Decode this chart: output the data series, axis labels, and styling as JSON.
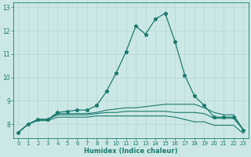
{
  "title": "",
  "xlabel": "Humidex (Indice chaleur)",
  "ylabel": "",
  "bg_color": "#cce8e6",
  "grid_color": "#b8d8d6",
  "line_color": "#1a7a6e",
  "xlim": [
    -0.5,
    23.5
  ],
  "ylim": [
    7.4,
    13.2
  ],
  "yticks": [
    8,
    9,
    10,
    11,
    12,
    13
  ],
  "xticks": [
    0,
    1,
    2,
    3,
    4,
    5,
    6,
    7,
    8,
    9,
    10,
    11,
    12,
    13,
    14,
    15,
    16,
    17,
    18,
    19,
    20,
    21,
    22,
    23
  ],
  "series": [
    [
      7.65,
      8.0,
      8.2,
      8.2,
      8.5,
      8.55,
      8.6,
      8.6,
      8.8,
      9.4,
      10.2,
      11.1,
      12.2,
      11.85,
      12.5,
      12.75,
      11.55,
      10.1,
      9.2,
      8.8,
      8.3,
      8.3,
      8.3,
      7.75
    ],
    [
      7.65,
      8.0,
      8.2,
      8.2,
      8.45,
      8.45,
      8.45,
      8.45,
      8.5,
      8.6,
      8.65,
      8.7,
      8.7,
      8.75,
      8.8,
      8.85,
      8.85,
      8.85,
      8.85,
      8.7,
      8.5,
      8.4,
      8.4,
      7.75
    ],
    [
      7.65,
      8.0,
      8.2,
      8.2,
      8.4,
      8.4,
      8.4,
      8.4,
      8.45,
      8.5,
      8.5,
      8.55,
      8.55,
      8.55,
      8.55,
      8.55,
      8.5,
      8.5,
      8.5,
      8.45,
      8.25,
      8.25,
      8.25,
      7.75
    ],
    [
      7.65,
      8.0,
      8.15,
      8.15,
      8.3,
      8.3,
      8.3,
      8.3,
      8.35,
      8.35,
      8.35,
      8.35,
      8.35,
      8.35,
      8.35,
      8.35,
      8.3,
      8.2,
      8.1,
      8.1,
      7.95,
      7.95,
      7.95,
      7.6
    ]
  ],
  "marker": "*",
  "markersize": 3.5,
  "tick_fontsize": 5.0,
  "xlabel_fontsize": 6.0
}
